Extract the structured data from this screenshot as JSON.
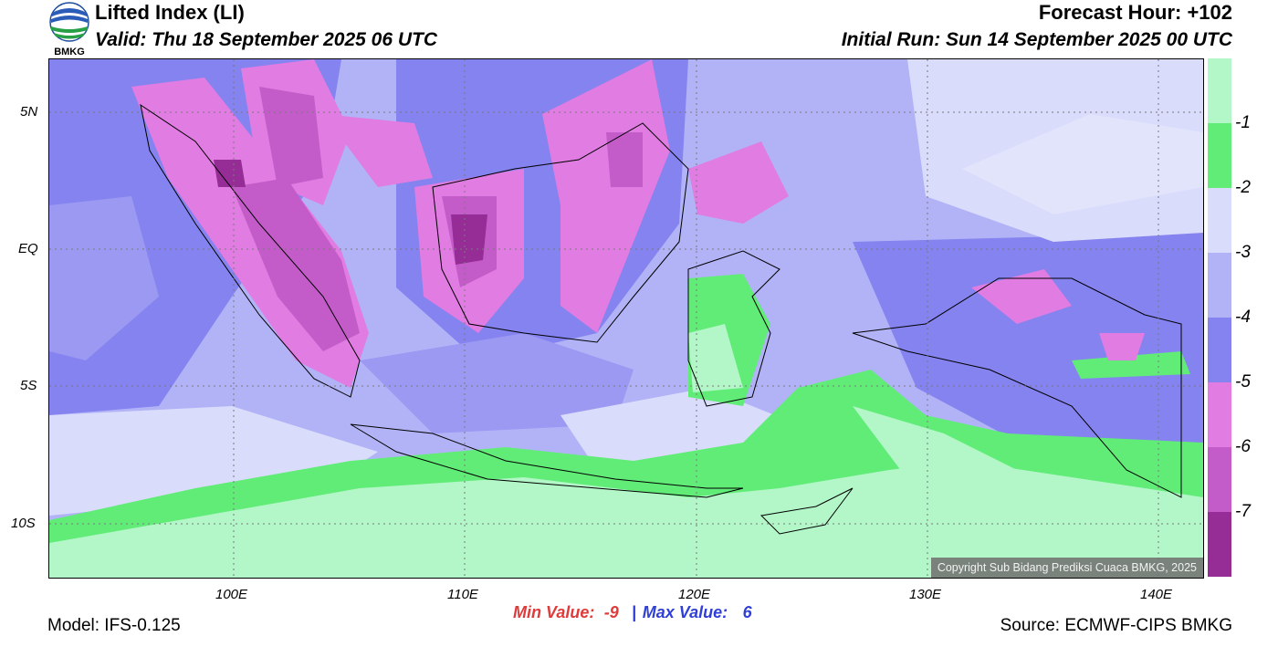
{
  "header": {
    "logo_text": "BMKG",
    "title": "Lifted Index (LI)",
    "valid": "Valid: Thu 18 September 2025 06 UTC",
    "forecast_hour": "Forecast Hour: +102",
    "initial_run": "Initial Run: Sun 14 September 2025 00 UTC"
  },
  "map": {
    "lat_labels": [
      "5N",
      "EQ",
      "5S",
      "10S"
    ],
    "lon_labels": [
      "100E",
      "110E",
      "120E",
      "130E",
      "140E"
    ],
    "copyright": "Copyright Sub Bidang Prediksi Cuaca BMKG, 2025"
  },
  "legend": {
    "colors": [
      "#b3f7c9",
      "#61ec78",
      "#d9dcfb",
      "#b2b3f7",
      "#8483ef",
      "#e07ce2",
      "#c35cc9",
      "#962c96"
    ],
    "labels": [
      "-1",
      "-2",
      "-3",
      "-4",
      "-5",
      "-6",
      "-7"
    ]
  },
  "footer": {
    "model": "Model: IFS-0.125",
    "min_label": "Min Value:",
    "min_value": "-9",
    "separator": "|",
    "max_label": "Max Value:",
    "max_value": "6",
    "source": "Source: ECMWF-CIPS BMKG"
  }
}
